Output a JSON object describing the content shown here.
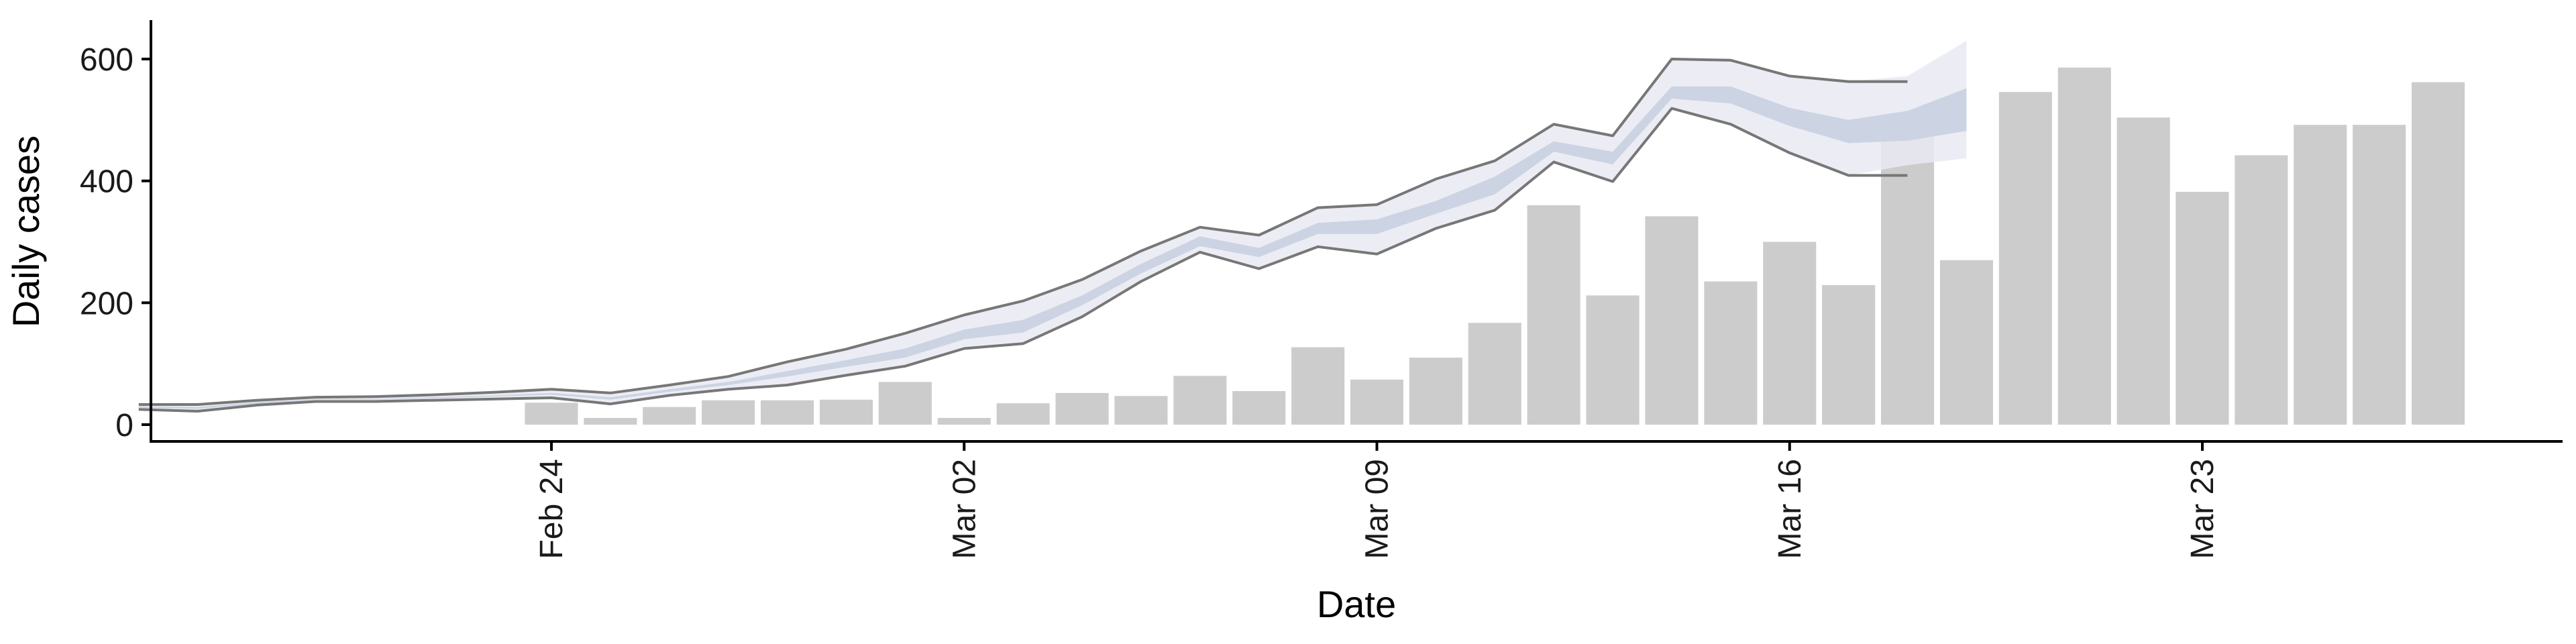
{
  "chart_data": {
    "type": "bar",
    "xlabel": "Date",
    "ylabel": "Daily cases",
    "ylim": [
      0,
      650
    ],
    "y_ticks": [
      "0",
      "200",
      "400",
      "600"
    ],
    "x_ticks": [
      "Feb 24",
      "Mar 02",
      "Mar 09",
      "Mar 16",
      "Mar 23"
    ],
    "x_tick_dates": [
      "2020-02-24",
      "2020-03-02",
      "2020-03-09",
      "2020-03-16",
      "2020-03-23"
    ],
    "grid": false,
    "legend": "none",
    "bar_color": "#cccccc",
    "bars": {
      "name": "Daily cases",
      "dates": [
        "2020-02-24",
        "2020-02-25",
        "2020-02-26",
        "2020-02-27",
        "2020-02-28",
        "2020-02-29",
        "2020-03-01",
        "2020-03-02",
        "2020-03-03",
        "2020-03-04",
        "2020-03-05",
        "2020-03-06",
        "2020-03-07",
        "2020-03-08",
        "2020-03-09",
        "2020-03-10",
        "2020-03-11",
        "2020-03-12",
        "2020-03-13",
        "2020-03-14",
        "2020-03-15",
        "2020-03-16",
        "2020-03-17",
        "2020-03-18",
        "2020-03-19",
        "2020-03-20",
        "2020-03-21",
        "2020-03-22",
        "2020-03-23",
        "2020-03-24",
        "2020-03-25",
        "2020-03-26",
        "2020-03-27"
      ],
      "values": [
        36,
        11,
        29,
        40,
        40,
        41,
        70,
        11,
        35,
        52,
        47,
        80,
        55,
        127,
        74,
        110,
        167,
        360,
        212,
        342,
        235,
        300,
        229,
        510,
        270,
        546,
        586,
        504,
        382,
        442,
        492,
        492,
        562
      ]
    },
    "bands": [
      {
        "name": "outer interval",
        "color": "#e9eaf2",
        "dates": [
          "2020-02-17",
          "2020-02-18",
          "2020-02-19",
          "2020-02-20",
          "2020-02-21",
          "2020-02-22",
          "2020-02-23",
          "2020-02-24",
          "2020-02-25",
          "2020-02-26",
          "2020-02-27",
          "2020-02-28",
          "2020-02-29",
          "2020-03-01",
          "2020-03-02",
          "2020-03-03",
          "2020-03-04",
          "2020-03-05",
          "2020-03-06",
          "2020-03-07",
          "2020-03-08",
          "2020-03-09",
          "2020-03-10",
          "2020-03-11",
          "2020-03-12",
          "2020-03-13",
          "2020-03-14",
          "2020-03-15",
          "2020-03-16",
          "2020-03-17",
          "2020-03-18",
          "2020-03-19"
        ],
        "upper": [
          33,
          33,
          40,
          45,
          46,
          49,
          53,
          58,
          52,
          65,
          79,
          103,
          124,
          150,
          180,
          203,
          238,
          285,
          324,
          311,
          356,
          361,
          403,
          433,
          493,
          474,
          600,
          598,
          572,
          563,
          572,
          630
        ],
        "lower": [
          25,
          22,
          32,
          38,
          38,
          40,
          42,
          44,
          34,
          48,
          58,
          65,
          81,
          96,
          125,
          133,
          177,
          235,
          283,
          256,
          292,
          280,
          322,
          352,
          431,
          399,
          519,
          493,
          446,
          409,
          426,
          437
        ]
      },
      {
        "name": "inner interval",
        "color": "#c9d0e1",
        "dates": [
          "2020-02-17",
          "2020-02-18",
          "2020-02-19",
          "2020-02-20",
          "2020-02-21",
          "2020-02-22",
          "2020-02-23",
          "2020-02-24",
          "2020-02-25",
          "2020-02-26",
          "2020-02-27",
          "2020-02-28",
          "2020-02-29",
          "2020-03-01",
          "2020-03-02",
          "2020-03-03",
          "2020-03-04",
          "2020-03-05",
          "2020-03-06",
          "2020-03-07",
          "2020-03-08",
          "2020-03-09",
          "2020-03-10",
          "2020-03-11",
          "2020-03-12",
          "2020-03-13",
          "2020-03-14",
          "2020-03-15",
          "2020-03-16",
          "2020-03-17",
          "2020-03-18",
          "2020-03-19"
        ],
        "upper": [
          30,
          29,
          37,
          42,
          42,
          45,
          48,
          52,
          45,
          58,
          70,
          88,
          106,
          125,
          156,
          172,
          212,
          264,
          309,
          290,
          331,
          337,
          367,
          407,
          465,
          448,
          555,
          555,
          520,
          500,
          515,
          552
        ],
        "lower": [
          28,
          26,
          34,
          41,
          41,
          43,
          46,
          49,
          41,
          54,
          65,
          79,
          95,
          110,
          140,
          151,
          196,
          248,
          293,
          275,
          313,
          313,
          346,
          378,
          448,
          427,
          535,
          527,
          490,
          462,
          466,
          482
        ]
      }
    ],
    "lines": [
      {
        "name": "upper bound",
        "color": "#777777",
        "dates": [
          "2020-02-17",
          "2020-02-18",
          "2020-02-19",
          "2020-02-20",
          "2020-02-21",
          "2020-02-22",
          "2020-02-23",
          "2020-02-24",
          "2020-02-25",
          "2020-02-26",
          "2020-02-27",
          "2020-02-28",
          "2020-02-29",
          "2020-03-01",
          "2020-03-02",
          "2020-03-03",
          "2020-03-04",
          "2020-03-05",
          "2020-03-06",
          "2020-03-07",
          "2020-03-08",
          "2020-03-09",
          "2020-03-10",
          "2020-03-11",
          "2020-03-12",
          "2020-03-13",
          "2020-03-14",
          "2020-03-15",
          "2020-03-16",
          "2020-03-17",
          "2020-03-18"
        ],
        "values": [
          33,
          33,
          40,
          45,
          46,
          49,
          53,
          58,
          52,
          65,
          79,
          103,
          124,
          150,
          180,
          203,
          238,
          285,
          324,
          311,
          356,
          361,
          403,
          433,
          493,
          474,
          600,
          598,
          572,
          563,
          563
        ]
      },
      {
        "name": "lower bound",
        "color": "#777777",
        "dates": [
          "2020-02-17",
          "2020-02-18",
          "2020-02-19",
          "2020-02-20",
          "2020-02-21",
          "2020-02-22",
          "2020-02-23",
          "2020-02-24",
          "2020-02-25",
          "2020-02-26",
          "2020-02-27",
          "2020-02-28",
          "2020-02-29",
          "2020-03-01",
          "2020-03-02",
          "2020-03-03",
          "2020-03-04",
          "2020-03-05",
          "2020-03-06",
          "2020-03-07",
          "2020-03-08",
          "2020-03-09",
          "2020-03-10",
          "2020-03-11",
          "2020-03-12",
          "2020-03-13",
          "2020-03-14",
          "2020-03-15",
          "2020-03-16",
          "2020-03-17",
          "2020-03-18"
        ],
        "values": [
          25,
          22,
          32,
          38,
          38,
          40,
          42,
          44,
          34,
          48,
          58,
          65,
          81,
          96,
          125,
          133,
          177,
          235,
          283,
          256,
          292,
          280,
          322,
          352,
          431,
          399,
          519,
          493,
          446,
          409,
          409
        ]
      }
    ]
  }
}
